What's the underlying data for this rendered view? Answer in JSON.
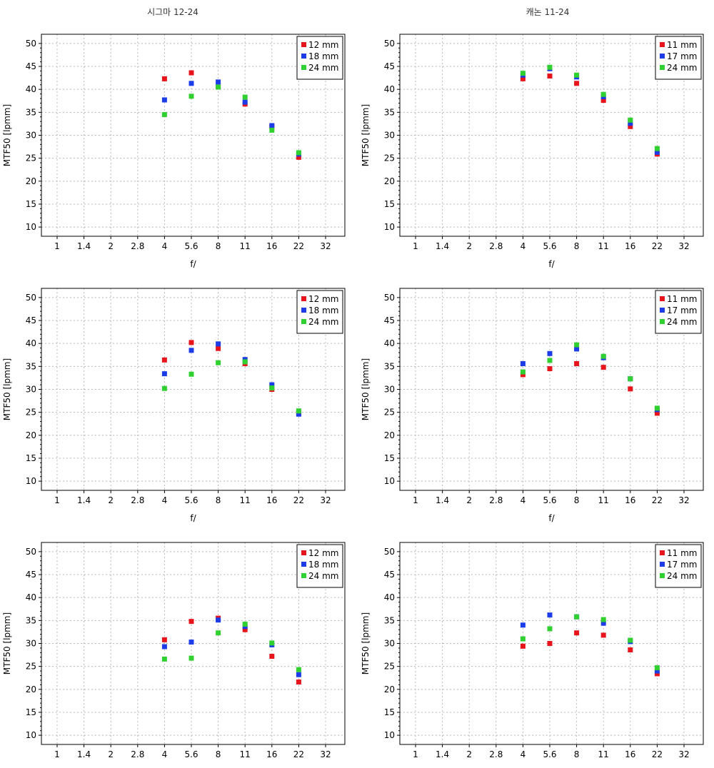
{
  "column_titles": {
    "left": "시그마 12-24",
    "right": "캐논 11-24"
  },
  "colors": {
    "red": "#e8141c",
    "blue": "#1c3ce8",
    "green": "#30d030"
  },
  "chart_data": [
    {
      "type": "scatter",
      "column": "left",
      "row": 1,
      "title": "",
      "xlabel": "f/",
      "ylabel": "MTF50 [lpmm]",
      "xticks": [
        "1",
        "1.4",
        "2",
        "2.8",
        "4",
        "5.6",
        "8",
        "11",
        "16",
        "22",
        "32"
      ],
      "ylim": [
        8,
        52
      ],
      "yticks": [
        10,
        15,
        20,
        25,
        30,
        35,
        40,
        45,
        50
      ],
      "x_categories": [
        "4",
        "5.6",
        "8",
        "11",
        "16",
        "22"
      ],
      "grid": true,
      "legend": "top-right",
      "series": [
        {
          "name": "12 mm",
          "color": "#e8141c",
          "values": [
            42.3,
            43.6,
            40.5,
            36.8,
            31.9,
            25.2
          ]
        },
        {
          "name": "18 mm",
          "color": "#1c3ce8",
          "values": [
            37.7,
            41.3,
            41.6,
            37.2,
            32.1,
            25.9
          ]
        },
        {
          "name": "24 mm",
          "color": "#30d030",
          "values": [
            34.5,
            38.5,
            40.5,
            38.3,
            31.1,
            26.2
          ]
        }
      ]
    },
    {
      "type": "scatter",
      "column": "right",
      "row": 1,
      "title": "",
      "xlabel": "f/",
      "ylabel": "MTF50 [lpmm]",
      "xticks": [
        "1",
        "1.4",
        "2",
        "2.8",
        "4",
        "5.6",
        "8",
        "11",
        "16",
        "22",
        "32"
      ],
      "ylim": [
        8,
        52
      ],
      "yticks": [
        10,
        15,
        20,
        25,
        30,
        35,
        40,
        45,
        50
      ],
      "x_categories": [
        "4",
        "5.6",
        "8",
        "11",
        "16",
        "22"
      ],
      "grid": true,
      "legend": "top-right",
      "series": [
        {
          "name": "11 mm",
          "color": "#e8141c",
          "values": [
            42.3,
            42.9,
            41.3,
            37.6,
            31.9,
            25.9
          ]
        },
        {
          "name": "17 mm",
          "color": "#1c3ce8",
          "values": [
            43.1,
            44.5,
            42.7,
            38.4,
            32.6,
            26.3
          ]
        },
        {
          "name": "24 mm",
          "color": "#30d030",
          "values": [
            43.5,
            44.8,
            43.1,
            38.9,
            33.3,
            27.1
          ]
        }
      ]
    },
    {
      "type": "scatter",
      "column": "left",
      "row": 2,
      "title": "",
      "xlabel": "f/",
      "ylabel": "MTF50 [lpmm]",
      "xticks": [
        "1",
        "1.4",
        "2",
        "2.8",
        "4",
        "5.6",
        "8",
        "11",
        "16",
        "22",
        "32"
      ],
      "ylim": [
        8,
        52
      ],
      "yticks": [
        10,
        15,
        20,
        25,
        30,
        35,
        40,
        45,
        50
      ],
      "x_categories": [
        "4",
        "5.6",
        "8",
        "11",
        "16",
        "22"
      ],
      "grid": true,
      "legend": "top-right",
      "series": [
        {
          "name": "12 mm",
          "color": "#e8141c",
          "values": [
            36.4,
            40.2,
            38.9,
            35.6,
            30.0,
            24.8
          ]
        },
        {
          "name": "18 mm",
          "color": "#1c3ce8",
          "values": [
            33.4,
            38.5,
            39.9,
            36.5,
            31.0,
            24.6
          ]
        },
        {
          "name": "24 mm",
          "color": "#30d030",
          "values": [
            30.2,
            33.3,
            35.8,
            36.0,
            30.3,
            25.3
          ]
        }
      ]
    },
    {
      "type": "scatter",
      "column": "right",
      "row": 2,
      "title": "",
      "xlabel": "f/",
      "ylabel": "MTF50 [lpmm]",
      "xticks": [
        "1",
        "1.4",
        "2",
        "2.8",
        "4",
        "5.6",
        "8",
        "11",
        "16",
        "22",
        "32"
      ],
      "ylim": [
        8,
        52
      ],
      "yticks": [
        10,
        15,
        20,
        25,
        30,
        35,
        40,
        45,
        50
      ],
      "x_categories": [
        "4",
        "5.6",
        "8",
        "11",
        "16",
        "22"
      ],
      "grid": true,
      "legend": "top-right",
      "series": [
        {
          "name": "11 mm",
          "color": "#e8141c",
          "values": [
            33.2,
            34.5,
            35.6,
            34.8,
            30.1,
            24.8
          ]
        },
        {
          "name": "17 mm",
          "color": "#1c3ce8",
          "values": [
            35.6,
            37.8,
            38.8,
            36.9,
            32.3,
            25.6
          ]
        },
        {
          "name": "24 mm",
          "color": "#30d030",
          "values": [
            33.8,
            36.3,
            39.7,
            37.2,
            32.3,
            25.9
          ]
        }
      ]
    },
    {
      "type": "scatter",
      "column": "left",
      "row": 3,
      "title": "",
      "xlabel": "",
      "ylabel": "MTF50 [lpmm]",
      "xticks": [
        "1",
        "1.4",
        "2",
        "2.8",
        "4",
        "5.6",
        "8",
        "11",
        "16",
        "22",
        "32"
      ],
      "ylim": [
        8,
        52
      ],
      "yticks": [
        10,
        15,
        20,
        25,
        30,
        35,
        40,
        45,
        50
      ],
      "x_categories": [
        "4",
        "5.6",
        "8",
        "11",
        "16",
        "22"
      ],
      "grid": true,
      "legend": "top-right",
      "series": [
        {
          "name": "12 mm",
          "color": "#e8141c",
          "values": [
            30.8,
            34.8,
            35.5,
            33.0,
            27.2,
            21.6
          ]
        },
        {
          "name": "18 mm",
          "color": "#1c3ce8",
          "values": [
            29.3,
            30.3,
            35.1,
            33.7,
            29.7,
            23.2
          ]
        },
        {
          "name": "24 mm",
          "color": "#30d030",
          "values": [
            26.6,
            26.8,
            32.3,
            34.2,
            30.1,
            24.3
          ]
        }
      ]
    },
    {
      "type": "scatter",
      "column": "right",
      "row": 3,
      "title": "",
      "xlabel": "",
      "ylabel": "MTF50 [lpmm]",
      "xticks": [
        "1",
        "1.4",
        "2",
        "2.8",
        "4",
        "5.6",
        "8",
        "11",
        "16",
        "22",
        "32"
      ],
      "ylim": [
        8,
        52
      ],
      "yticks": [
        10,
        15,
        20,
        25,
        30,
        35,
        40,
        45,
        50
      ],
      "x_categories": [
        "4",
        "5.6",
        "8",
        "11",
        "16",
        "22"
      ],
      "grid": true,
      "legend": "top-right",
      "series": [
        {
          "name": "11 mm",
          "color": "#e8141c",
          "values": [
            29.4,
            30.0,
            32.3,
            31.8,
            28.6,
            23.4
          ]
        },
        {
          "name": "17 mm",
          "color": "#1c3ce8",
          "values": [
            34.0,
            36.2,
            35.8,
            34.4,
            30.4,
            24.0
          ]
        },
        {
          "name": "24 mm",
          "color": "#30d030",
          "values": [
            31.0,
            33.2,
            35.8,
            35.2,
            30.7,
            24.7
          ]
        }
      ]
    }
  ]
}
